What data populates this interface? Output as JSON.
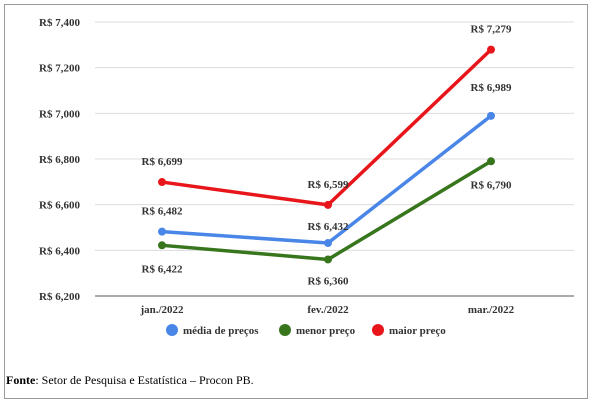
{
  "chart_data": {
    "type": "line",
    "categories": [
      "jan./2022",
      "fev./2022",
      "mar./2022"
    ],
    "y_ticks": [
      "R$ 6,200",
      "R$ 6,400",
      "R$ 6,600",
      "R$ 6,800",
      "R$ 7,000",
      "R$ 7,200",
      "R$ 7,400"
    ],
    "ylim": [
      6.2,
      7.4
    ],
    "grid": true,
    "legend_position": "bottom",
    "series": [
      {
        "name": "média de preços",
        "color": "#4a86e8",
        "values": [
          6.482,
          6.432,
          6.989
        ],
        "labels": [
          "R$ 6,482",
          "R$ 6,432",
          "R$ 6,989"
        ]
      },
      {
        "name": "menor preço",
        "color": "#38761d",
        "values": [
          6.422,
          6.36,
          6.79
        ],
        "labels": [
          "R$ 6,422",
          "R$ 6,360",
          "R$ 6,790"
        ]
      },
      {
        "name": "maior preço",
        "color": "#e8161a",
        "values": [
          6.699,
          6.599,
          7.279
        ],
        "labels": [
          "R$ 6,699",
          "R$ 6,599",
          "R$ 7,279"
        ]
      }
    ]
  },
  "source": {
    "label": "Fonte",
    "text": ": Setor de Pesquisa e Estatística – Procon PB."
  }
}
